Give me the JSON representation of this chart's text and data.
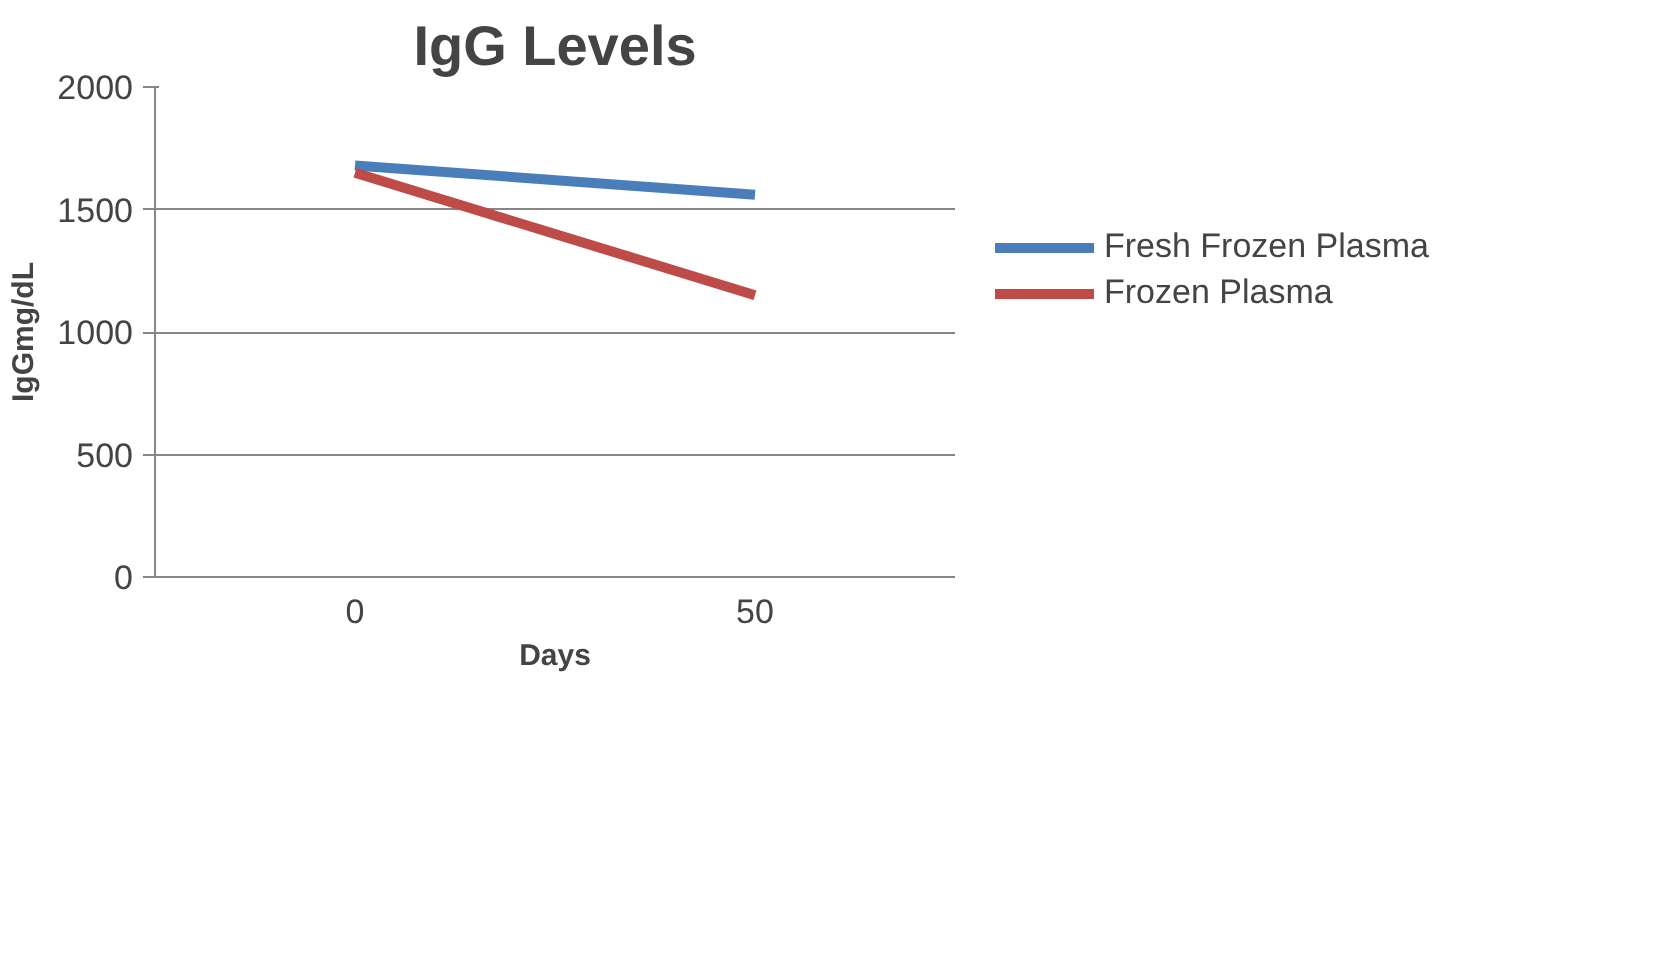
{
  "chart_data": {
    "type": "line",
    "title": "IgG Levels",
    "xlabel": "Days",
    "ylabel": "IgGmg/dL",
    "categories": [
      "0",
      "50"
    ],
    "series": [
      {
        "name": "Fresh Frozen Plasma",
        "color": "#4a7ebb",
        "values": [
          1680,
          1560
        ]
      },
      {
        "name": "Frozen Plasma",
        "color": "#be4b48",
        "values": [
          1650,
          1150
        ]
      }
    ],
    "ylim": [
      0,
      2000
    ],
    "yticks": [
      0,
      500,
      1000,
      1500,
      2000
    ],
    "grid": "y",
    "legend": "right",
    "marker": "none",
    "line_style": "solid"
  }
}
